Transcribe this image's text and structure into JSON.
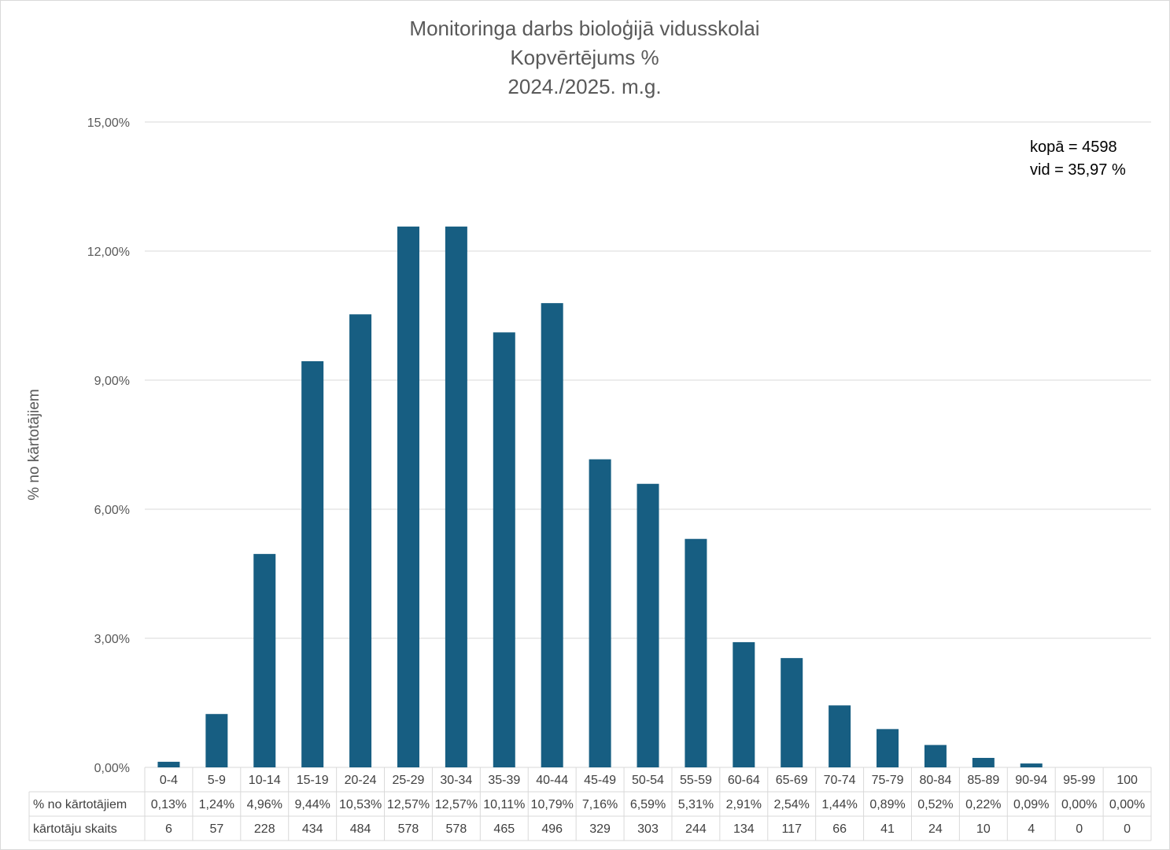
{
  "chart_data": {
    "type": "bar",
    "title_lines": [
      "Monitoringa darbs bioloģijā vidusskolai",
      "Kopvērtējums %",
      "2024./2025. m.g."
    ],
    "ylabel": "% no kārtotājiem",
    "ylim": [
      0,
      15
    ],
    "yticks": [
      0,
      3,
      6,
      9,
      12,
      15
    ],
    "ytick_labels": [
      "0,00%",
      "3,00%",
      "6,00%",
      "9,00%",
      "12,00%",
      "15,00%"
    ],
    "grid": true,
    "bar_color": "#175e82",
    "categories": [
      "0-4",
      "5-9",
      "10-14",
      "15-19",
      "20-24",
      "25-29",
      "30-34",
      "35-39",
      "40-44",
      "45-49",
      "50-54",
      "55-59",
      "60-64",
      "65-69",
      "70-74",
      "75-79",
      "80-84",
      "85-89",
      "90-94",
      "95-99",
      "100"
    ],
    "values": [
      0.13,
      1.24,
      4.96,
      9.44,
      10.53,
      12.57,
      12.57,
      10.11,
      10.79,
      7.16,
      6.59,
      5.31,
      2.91,
      2.54,
      1.44,
      0.89,
      0.52,
      0.22,
      0.09,
      0.0,
      0.0
    ],
    "table": {
      "rows": [
        {
          "label": "% no kārtotājiem",
          "cells": [
            "0,13%",
            "1,24%",
            "4,96%",
            "9,44%",
            "10,53%",
            "12,57%",
            "12,57%",
            "10,11%",
            "10,79%",
            "7,16%",
            "6,59%",
            "5,31%",
            "2,91%",
            "2,54%",
            "1,44%",
            "0,89%",
            "0,52%",
            "0,22%",
            "0,09%",
            "0,00%",
            "0,00%"
          ]
        },
        {
          "label": "kārtotāju skaits",
          "cells": [
            "6",
            "57",
            "228",
            "434",
            "484",
            "578",
            "578",
            "465",
            "496",
            "329",
            "303",
            "244",
            "134",
            "117",
            "66",
            "41",
            "24",
            "10",
            "4",
            "0",
            "0"
          ]
        }
      ]
    },
    "annotations": [
      "kopā = 4598",
      "vid = 35,97 %"
    ]
  }
}
